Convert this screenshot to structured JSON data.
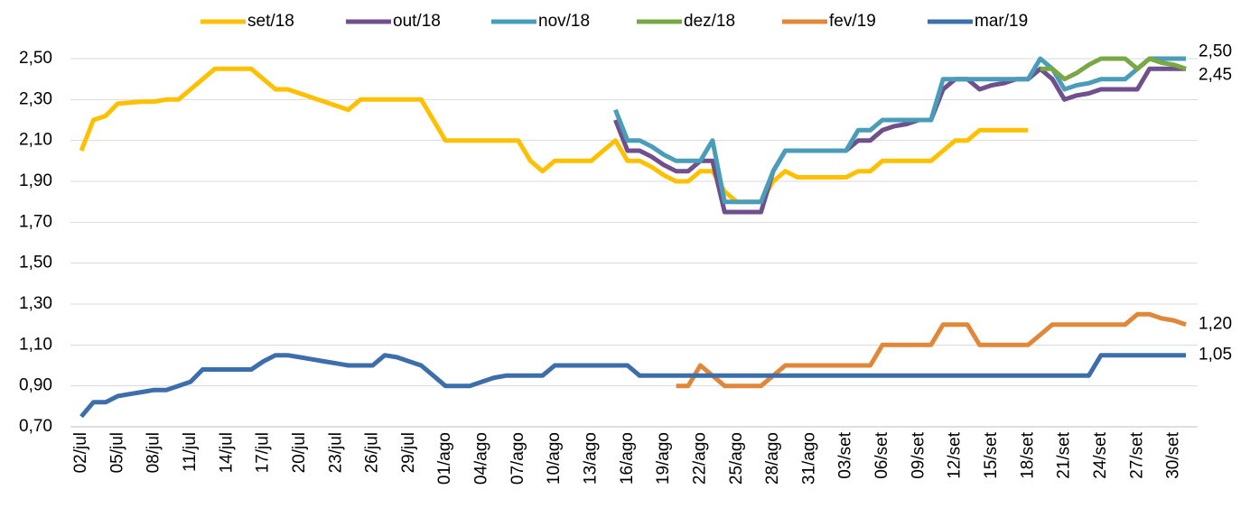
{
  "chart_data": {
    "type": "line",
    "categories": [
      "02/jul",
      null,
      null,
      "05/jul",
      null,
      null,
      "08/jul",
      null,
      null,
      "11/jul",
      null,
      null,
      "14/jul",
      null,
      null,
      "17/jul",
      null,
      null,
      "20/jul",
      null,
      null,
      "23/jul",
      null,
      null,
      "26/jul",
      null,
      null,
      "29/jul",
      null,
      null,
      "01/ago",
      null,
      null,
      "04/ago",
      null,
      null,
      "07/ago",
      null,
      null,
      "10/ago",
      null,
      null,
      "13/ago",
      null,
      null,
      "16/ago",
      null,
      null,
      "19/ago",
      null,
      null,
      "22/ago",
      null,
      null,
      "25/ago",
      null,
      null,
      "28/ago",
      null,
      null,
      "31/ago",
      null,
      null,
      "03/set",
      null,
      null,
      "06/set",
      null,
      null,
      "09/set",
      null,
      null,
      "12/set",
      null,
      null,
      "15/set",
      null,
      null,
      "18/set",
      null,
      null,
      "21/set",
      null,
      null,
      "24/set",
      null,
      null,
      "27/set",
      null,
      null,
      "30/set",
      null
    ],
    "series": [
      {
        "name": "set/18",
        "color": "#ffc000",
        "values": [
          2.05,
          2.2,
          2.22,
          2.28,
          2.285,
          2.29,
          2.29,
          2.3,
          2.3,
          2.35,
          2.4,
          2.45,
          2.45,
          2.45,
          2.45,
          2.4,
          2.35,
          2.35,
          2.33,
          2.31,
          2.29,
          2.27,
          2.25,
          2.3,
          2.3,
          2.3,
          2.3,
          2.3,
          2.3,
          2.2,
          2.1,
          2.1,
          2.1,
          2.1,
          2.1,
          2.1,
          2.1,
          2.0,
          1.95,
          2.0,
          2.0,
          2.0,
          2.0,
          2.05,
          2.1,
          2.0,
          2.0,
          1.97,
          1.93,
          1.9,
          1.9,
          1.95,
          1.95,
          1.85,
          1.8,
          1.8,
          1.8,
          1.9,
          1.95,
          1.92,
          1.92,
          1.92,
          1.92,
          1.92,
          1.95,
          1.95,
          2.0,
          2.0,
          2.0,
          2.0,
          2.0,
          2.05,
          2.1,
          2.1,
          2.15,
          2.15,
          2.15,
          2.15,
          2.15,
          null,
          null,
          null,
          null,
          null,
          null,
          null,
          null,
          null,
          null,
          null,
          null,
          null
        ]
      },
      {
        "name": "out/18",
        "color": "#6f4f8c",
        "values": [
          null,
          null,
          null,
          null,
          null,
          null,
          null,
          null,
          null,
          null,
          null,
          null,
          null,
          null,
          null,
          null,
          null,
          null,
          null,
          null,
          null,
          null,
          null,
          null,
          null,
          null,
          null,
          null,
          null,
          null,
          null,
          null,
          null,
          null,
          null,
          null,
          null,
          null,
          null,
          null,
          null,
          null,
          null,
          null,
          2.2,
          2.05,
          2.05,
          2.02,
          1.98,
          1.95,
          1.95,
          2.0,
          2.0,
          1.75,
          1.75,
          1.75,
          1.75,
          1.95,
          2.05,
          2.05,
          2.05,
          2.05,
          2.05,
          2.05,
          2.1,
          2.1,
          2.15,
          2.17,
          2.18,
          2.2,
          2.2,
          2.35,
          2.4,
          2.4,
          2.35,
          2.37,
          2.38,
          2.4,
          2.4,
          2.45,
          2.4,
          2.3,
          2.32,
          2.33,
          2.35,
          2.35,
          2.35,
          2.35,
          2.45,
          2.45,
          2.45,
          2.45
        ]
      },
      {
        "name": "nov/18",
        "color": "#4a9db8",
        "values": [
          null,
          null,
          null,
          null,
          null,
          null,
          null,
          null,
          null,
          null,
          null,
          null,
          null,
          null,
          null,
          null,
          null,
          null,
          null,
          null,
          null,
          null,
          null,
          null,
          null,
          null,
          null,
          null,
          null,
          null,
          null,
          null,
          null,
          null,
          null,
          null,
          null,
          null,
          null,
          null,
          null,
          null,
          null,
          null,
          2.25,
          2.1,
          2.1,
          2.07,
          2.03,
          2.0,
          2.0,
          2.0,
          2.1,
          1.8,
          1.8,
          1.8,
          1.8,
          1.95,
          2.05,
          2.05,
          2.05,
          2.05,
          2.05,
          2.05,
          2.15,
          2.15,
          2.2,
          2.2,
          2.2,
          2.2,
          2.2,
          2.4,
          2.4,
          2.4,
          2.4,
          2.4,
          2.4,
          2.4,
          2.4,
          2.5,
          2.45,
          2.35,
          2.37,
          2.38,
          2.4,
          2.4,
          2.4,
          2.45,
          2.5,
          2.5,
          2.5,
          2.5
        ],
        "value_labels": [
          null,
          null,
          null,
          null,
          null,
          null,
          null,
          null,
          null,
          null,
          null,
          null,
          null,
          null,
          null,
          null,
          null,
          null,
          null,
          null,
          null,
          null,
          null,
          null,
          null,
          null,
          null,
          null,
          null,
          null,
          null,
          null,
          null,
          null,
          null,
          null,
          null,
          null,
          null,
          null,
          null,
          null,
          null,
          null,
          null,
          null,
          null,
          null,
          null,
          null,
          null,
          null,
          null,
          null,
          null,
          null,
          null,
          null,
          null,
          null,
          null,
          null,
          null,
          null,
          null,
          null,
          null,
          null,
          null,
          null,
          null,
          null,
          null,
          null,
          null,
          null,
          null,
          null,
          null,
          null,
          null,
          null,
          null,
          null,
          null,
          null,
          null,
          null,
          null,
          null,
          null,
          "2,50"
        ]
      },
      {
        "name": "dez/18",
        "color": "#77a843",
        "values": [
          null,
          null,
          null,
          null,
          null,
          null,
          null,
          null,
          null,
          null,
          null,
          null,
          null,
          null,
          null,
          null,
          null,
          null,
          null,
          null,
          null,
          null,
          null,
          null,
          null,
          null,
          null,
          null,
          null,
          null,
          null,
          null,
          null,
          null,
          null,
          null,
          null,
          null,
          null,
          null,
          null,
          null,
          null,
          null,
          null,
          null,
          null,
          null,
          null,
          null,
          null,
          null,
          null,
          null,
          null,
          null,
          null,
          null,
          null,
          null,
          null,
          null,
          null,
          null,
          null,
          null,
          null,
          null,
          null,
          null,
          null,
          null,
          null,
          null,
          null,
          null,
          null,
          null,
          null,
          2.45,
          2.45,
          2.4,
          2.43,
          2.47,
          2.5,
          2.5,
          2.5,
          2.45,
          2.5,
          2.48,
          2.47,
          2.45
        ],
        "value_labels": [
          null,
          null,
          null,
          null,
          null,
          null,
          null,
          null,
          null,
          null,
          null,
          null,
          null,
          null,
          null,
          null,
          null,
          null,
          null,
          null,
          null,
          null,
          null,
          null,
          null,
          null,
          null,
          null,
          null,
          null,
          null,
          null,
          null,
          null,
          null,
          null,
          null,
          null,
          null,
          null,
          null,
          null,
          null,
          null,
          null,
          null,
          null,
          null,
          null,
          null,
          null,
          null,
          null,
          null,
          null,
          null,
          null,
          null,
          null,
          null,
          null,
          null,
          null,
          null,
          null,
          null,
          null,
          null,
          null,
          null,
          null,
          null,
          null,
          null,
          null,
          null,
          null,
          null,
          null,
          null,
          null,
          null,
          null,
          null,
          null,
          null,
          null,
          null,
          null,
          null,
          null,
          "2,45"
        ]
      },
      {
        "name": "fev/19",
        "color": "#e0873a",
        "values": [
          null,
          null,
          null,
          null,
          null,
          null,
          null,
          null,
          null,
          null,
          null,
          null,
          null,
          null,
          null,
          null,
          null,
          null,
          null,
          null,
          null,
          null,
          null,
          null,
          null,
          null,
          null,
          null,
          null,
          null,
          null,
          null,
          null,
          null,
          null,
          null,
          null,
          null,
          null,
          null,
          null,
          null,
          null,
          null,
          null,
          null,
          null,
          null,
          null,
          0.9,
          0.9,
          1.0,
          0.95,
          0.9,
          0.9,
          0.9,
          0.9,
          0.95,
          1.0,
          1.0,
          1.0,
          1.0,
          1.0,
          1.0,
          1.0,
          1.0,
          1.1,
          1.1,
          1.1,
          1.1,
          1.1,
          1.2,
          1.2,
          1.2,
          1.1,
          1.1,
          1.1,
          1.1,
          1.1,
          1.15,
          1.2,
          1.2,
          1.2,
          1.2,
          1.2,
          1.2,
          1.2,
          1.25,
          1.25,
          1.23,
          1.22,
          1.2
        ],
        "value_labels": [
          null,
          null,
          null,
          null,
          null,
          null,
          null,
          null,
          null,
          null,
          null,
          null,
          null,
          null,
          null,
          null,
          null,
          null,
          null,
          null,
          null,
          null,
          null,
          null,
          null,
          null,
          null,
          null,
          null,
          null,
          null,
          null,
          null,
          null,
          null,
          null,
          null,
          null,
          null,
          null,
          null,
          null,
          null,
          null,
          null,
          null,
          null,
          null,
          null,
          null,
          null,
          null,
          null,
          null,
          null,
          null,
          null,
          null,
          null,
          null,
          null,
          null,
          null,
          null,
          null,
          null,
          null,
          null,
          null,
          null,
          null,
          null,
          null,
          null,
          null,
          null,
          null,
          null,
          null,
          null,
          null,
          null,
          null,
          null,
          null,
          null,
          null,
          null,
          null,
          null,
          null,
          "1,20"
        ]
      },
      {
        "name": "mar/19",
        "color": "#3c6eab",
        "values": [
          0.75,
          0.82,
          0.82,
          0.85,
          0.86,
          0.87,
          0.88,
          0.88,
          0.9,
          0.92,
          0.98,
          0.98,
          0.98,
          0.98,
          0.98,
          1.02,
          1.05,
          1.05,
          1.04,
          1.03,
          1.02,
          1.01,
          1.0,
          1.0,
          1.0,
          1.05,
          1.04,
          1.02,
          1.0,
          0.95,
          0.9,
          0.9,
          0.9,
          0.92,
          0.94,
          0.95,
          0.95,
          0.95,
          0.95,
          1.0,
          1.0,
          1.0,
          1.0,
          1.0,
          1.0,
          1.0,
          0.95,
          0.95,
          0.95,
          0.95,
          0.95,
          0.95,
          0.95,
          0.95,
          0.95,
          0.95,
          0.95,
          0.95,
          0.95,
          0.95,
          0.95,
          0.95,
          0.95,
          0.95,
          0.95,
          0.95,
          0.95,
          0.95,
          0.95,
          0.95,
          0.95,
          0.95,
          0.95,
          0.95,
          0.95,
          0.95,
          0.95,
          0.95,
          0.95,
          0.95,
          0.95,
          0.95,
          0.95,
          0.95,
          1.05,
          1.05,
          1.05,
          1.05,
          1.05,
          1.05,
          1.05,
          1.05
        ],
        "value_labels": [
          null,
          null,
          null,
          null,
          null,
          null,
          null,
          null,
          null,
          null,
          null,
          null,
          null,
          null,
          null,
          null,
          null,
          null,
          null,
          null,
          null,
          null,
          null,
          null,
          null,
          null,
          null,
          null,
          null,
          null,
          null,
          null,
          null,
          null,
          null,
          null,
          null,
          null,
          null,
          null,
          null,
          null,
          null,
          null,
          null,
          null,
          null,
          null,
          null,
          null,
          null,
          null,
          null,
          null,
          null,
          null,
          null,
          null,
          null,
          null,
          null,
          null,
          null,
          null,
          null,
          null,
          null,
          null,
          null,
          null,
          null,
          null,
          null,
          null,
          null,
          null,
          null,
          null,
          null,
          null,
          null,
          null,
          null,
          null,
          null,
          null,
          null,
          null,
          null,
          null,
          null,
          "1,05"
        ]
      }
    ],
    "ylim": [
      0.7,
      2.5
    ],
    "yticks": [
      {
        "value": 0.7,
        "label": "0,70"
      },
      {
        "value": 0.9,
        "label": "0,90"
      },
      {
        "value": 1.1,
        "label": "1,10"
      },
      {
        "value": 1.3,
        "label": "1,30"
      },
      {
        "value": 1.5,
        "label": "1,50"
      },
      {
        "value": 1.7,
        "label": "1,70"
      },
      {
        "value": 1.9,
        "label": "1,90"
      },
      {
        "value": 2.1,
        "label": "2,10"
      },
      {
        "value": 2.3,
        "label": "2,30"
      },
      {
        "value": 2.5,
        "label": "2,50"
      }
    ],
    "grid": true,
    "legend": "top"
  }
}
